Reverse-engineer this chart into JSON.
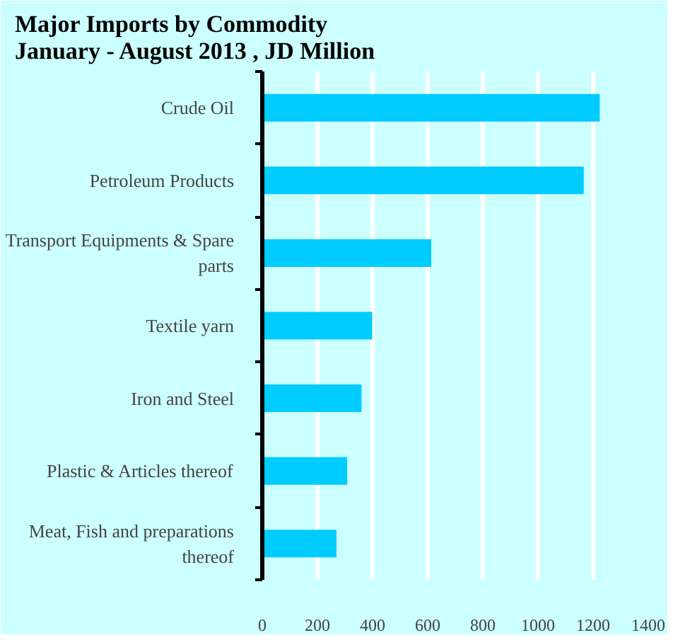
{
  "chart_data": {
    "type": "bar",
    "orientation": "horizontal",
    "title": "Major Imports by Commodity\nJanuary  - August 2013 ,  JD Million",
    "categories": [
      "Crude Oil",
      "Petroleum Products",
      "Transport Equipments & Spare parts",
      "Textile yarn",
      "Iron and Steel",
      "Plastic & Articles thereof",
      "Meat, Fish and preparations thereof"
    ],
    "values": [
      1224,
      1166,
      613,
      399,
      360,
      308,
      269
    ],
    "color": "#00ccff",
    "xlim": [
      0,
      1400
    ],
    "xticks": [
      0,
      200,
      400,
      600,
      800,
      1000,
      1200,
      1400
    ],
    "grid": "x"
  }
}
